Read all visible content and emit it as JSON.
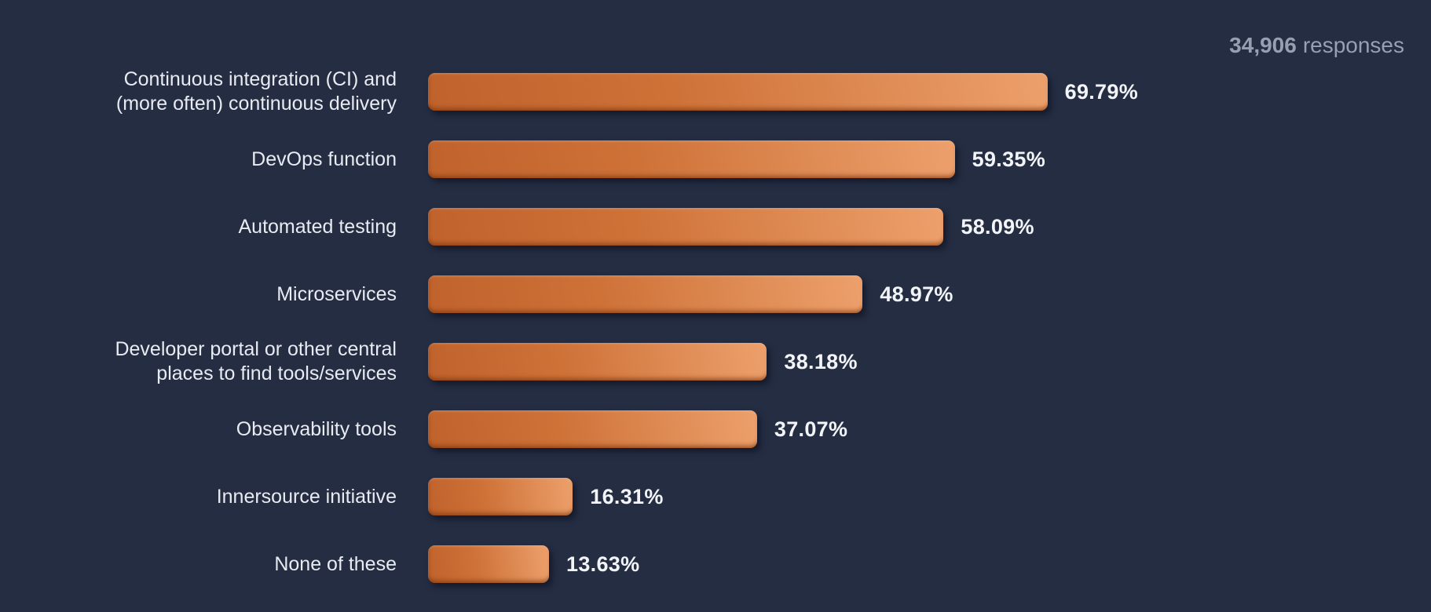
{
  "header": {
    "responses_count": "34,906",
    "responses_label": "responses"
  },
  "chart_data": {
    "type": "bar",
    "orientation": "horizontal",
    "title": "",
    "categories": [
      "Continuous integration (CI) and\n(more often) continuous delivery",
      "DevOps function",
      "Automated testing",
      "Microservices",
      "Developer portal or other central\nplaces to find tools/services",
      "Observability tools",
      "Innersource initiative",
      "None of these"
    ],
    "values": [
      69.79,
      59.35,
      58.09,
      48.97,
      38.18,
      37.07,
      16.31,
      13.63
    ],
    "value_labels": [
      "69.79%",
      "59.35%",
      "58.09%",
      "48.97%",
      "38.18%",
      "37.07%",
      "16.31%",
      "13.63%"
    ],
    "responses_total": "34,906",
    "xlim": [
      0,
      70
    ],
    "grid": false,
    "legend": false,
    "colors": {
      "background": "#252d43",
      "bar_gradient_start": "#c0622c",
      "bar_gradient_end": "#eda06c",
      "label_text": "#e8ebf1",
      "value_text": "#f2f4f7",
      "responses_text": "#97a0b3"
    }
  }
}
